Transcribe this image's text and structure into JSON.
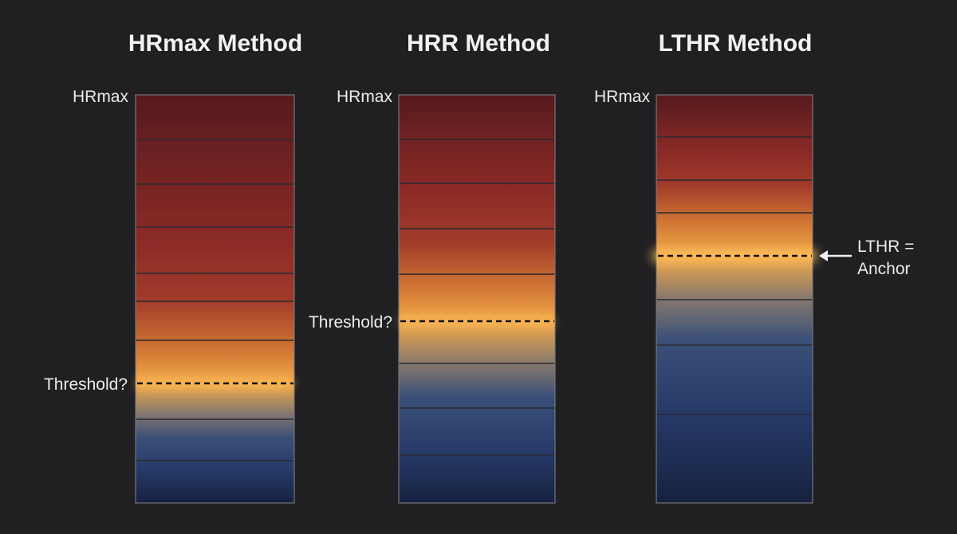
{
  "panels": [
    {
      "title": "HRmax Method",
      "top_label": "HRmax",
      "marker_label": [
        "Threshold?"
      ]
    },
    {
      "title": "HRR Method",
      "top_label": "HRmax",
      "marker_label": [
        "Threshold?"
      ]
    },
    {
      "title": "LTHR Method",
      "top_label": "HRmax",
      "marker_label": [
        "LTHR =",
        "Anchor"
      ]
    }
  ]
}
